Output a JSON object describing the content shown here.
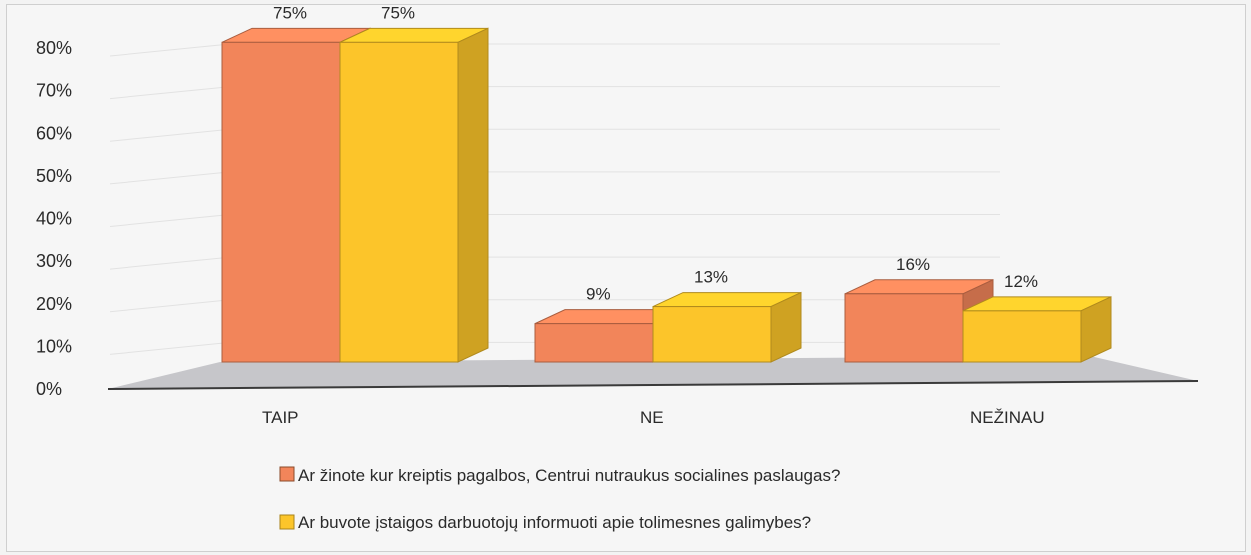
{
  "chart_data": {
    "type": "bar",
    "categories": [
      "TAIP",
      "NE",
      "NEŽINAU"
    ],
    "series": [
      {
        "name": "Ar žinote kur kreiptis pagalbos, Centrui nutraukus socialines paslaugas?",
        "values": [
          75,
          9,
          16
        ],
        "color": "#f2855a"
      },
      {
        "name": "Ar buvote įstaigos darbuotojų informuoti apie tolimesnes galimybes?",
        "values": [
          75,
          13,
          12
        ],
        "color": "#fcc52a"
      }
    ],
    "data_labels": [
      [
        "75%",
        "9%",
        "16%"
      ],
      [
        "75%",
        "13%",
        "12%"
      ]
    ],
    "yticks": [
      "0%",
      "10%",
      "20%",
      "30%",
      "40%",
      "50%",
      "60%",
      "70%",
      "80%"
    ],
    "ylim": [
      0,
      80
    ],
    "legend_position": "bottom",
    "grid": true,
    "style": "3d-clustered"
  }
}
